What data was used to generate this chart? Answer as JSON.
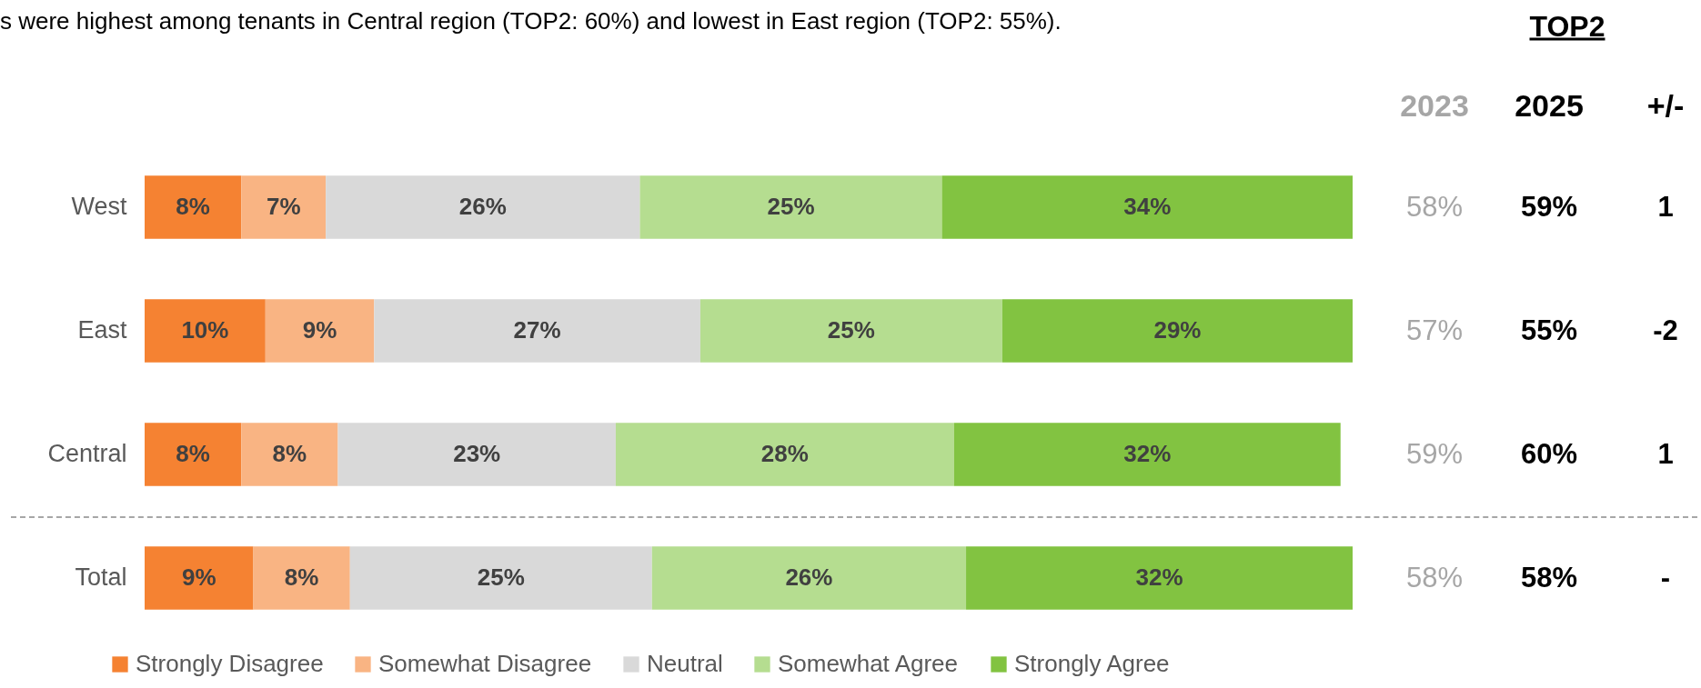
{
  "chart_data": [
    {
      "type": "bar",
      "orientation": "horizontal",
      "stacked": true,
      "subtitle": "s were highest among tenants in Central region (TOP2: 60%) and lowest in East region (TOP2: 55%).",
      "categories": [
        "West",
        "East",
        "Central",
        "Total"
      ],
      "series": [
        {
          "name": "Strongly Disagree",
          "color": "#f58232",
          "values": [
            8,
            10,
            8,
            9
          ],
          "value_labels": [
            "8%",
            "10%",
            "8%",
            "9%"
          ]
        },
        {
          "name": "Somewhat Disagree",
          "color": "#f9b483",
          "values": [
            7,
            9,
            8,
            8
          ],
          "value_labels": [
            "7%",
            "9%",
            "8%",
            "8%"
          ]
        },
        {
          "name": "Neutral",
          "color": "#d9d9d9",
          "values": [
            26,
            27,
            23,
            25
          ],
          "value_labels": [
            "26%",
            "27%",
            "23%",
            "25%"
          ]
        },
        {
          "name": "Somewhat Agree",
          "color": "#b5dd90",
          "values": [
            25,
            25,
            28,
            26
          ],
          "value_labels": [
            "25%",
            "25%",
            "28%",
            "26%"
          ]
        },
        {
          "name": "Strongly Agree",
          "color": "#82c341",
          "values": [
            34,
            29,
            32,
            32
          ],
          "value_labels": [
            "34%",
            "29%",
            "32%",
            "32%"
          ]
        }
      ],
      "tick_labels": "y",
      "legend": "bottom"
    },
    {
      "type": "other",
      "title": "TOP2",
      "categories": [
        "2023",
        "2025",
        "+/-"
      ],
      "cell_labels": [
        [
          "58%",
          "59%",
          "1"
        ],
        [
          "57%",
          "55%",
          "-2"
        ],
        [
          "59%",
          "60%",
          "1"
        ],
        [
          "58%",
          "58%",
          "-"
        ]
      ]
    }
  ]
}
